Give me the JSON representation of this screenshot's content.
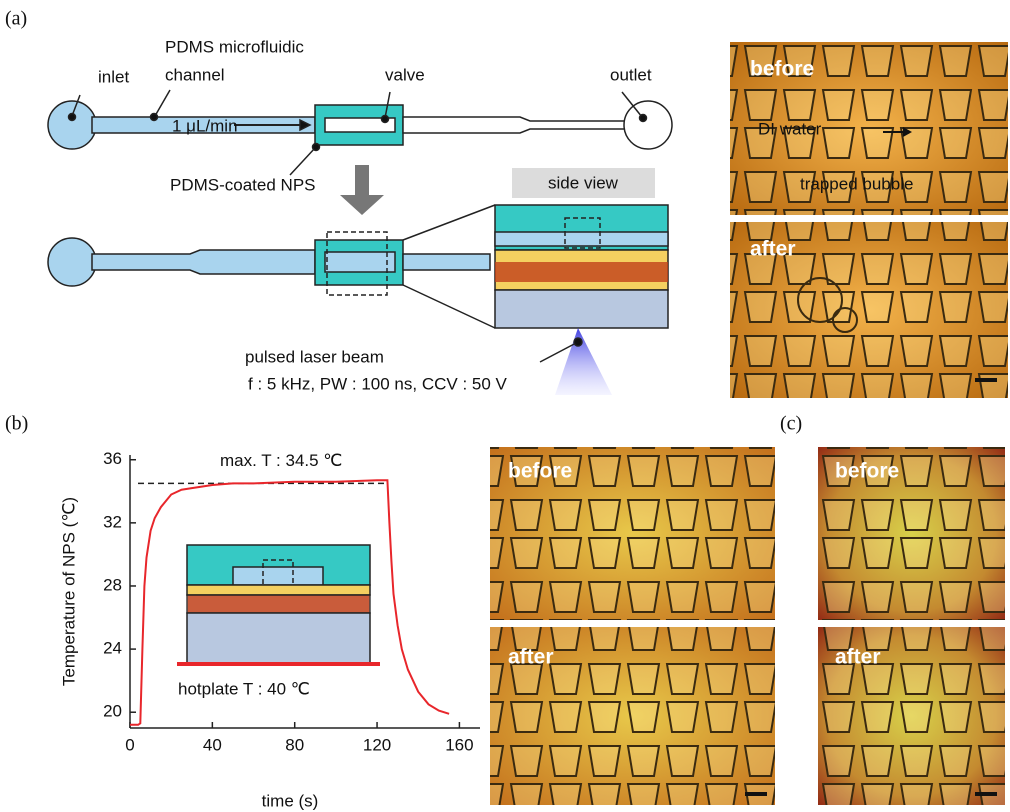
{
  "panel_a": {
    "label": "(a)",
    "inlet": "inlet",
    "channel_title_1": "PDMS microfluidic",
    "channel_title_2": "channel",
    "valve": "valve",
    "outlet": "outlet",
    "flow": "1 μL/min",
    "nps": "PDMS-coated NPS",
    "side_view": "side view",
    "laser": "pulsed laser beam",
    "laser_params": "f : 5 kHz, PW : 100 ns, CCV : 50 V",
    "photo_before": "before",
    "photo_water": "DI water",
    "photo_bubble": "trapped bubble",
    "photo_after": "after"
  },
  "panel_b": {
    "label": "(b)",
    "photo_before": "before",
    "photo_after": "after",
    "inset_label": "hotplate T : 40 ℃"
  },
  "panel_c": {
    "label": "(c)",
    "photo_before": "before",
    "photo_after": "after"
  },
  "chart_data": {
    "type": "line",
    "xlabel": "time (s)",
    "ylabel": "Temperature of NPS (℃)",
    "xlim": [
      0,
      170
    ],
    "ylim": [
      19,
      36.3
    ],
    "xticks": [
      0,
      40,
      80,
      120,
      160
    ],
    "yticks": [
      20,
      24,
      28,
      32,
      36
    ],
    "hline": {
      "value": 34.5,
      "label": "max. T : 34.5 ℃"
    },
    "series": [
      {
        "color": "#e8262b",
        "x": [
          0,
          4,
          5,
          6,
          7,
          8,
          10,
          12,
          15,
          20,
          25,
          30,
          40,
          50,
          60,
          80,
          100,
          120,
          124,
          125,
          126,
          127,
          128,
          130,
          132,
          135,
          140,
          145,
          150,
          155
        ],
        "values": [
          19.2,
          19.2,
          19.3,
          24,
          28,
          29.8,
          31.5,
          32.3,
          33,
          33.8,
          34.1,
          34.2,
          34.4,
          34.5,
          34.5,
          34.6,
          34.6,
          34.7,
          34.7,
          34.7,
          32,
          29.5,
          27.5,
          25.5,
          24,
          22.7,
          21.3,
          20.5,
          20.1,
          19.9
        ]
      }
    ]
  }
}
